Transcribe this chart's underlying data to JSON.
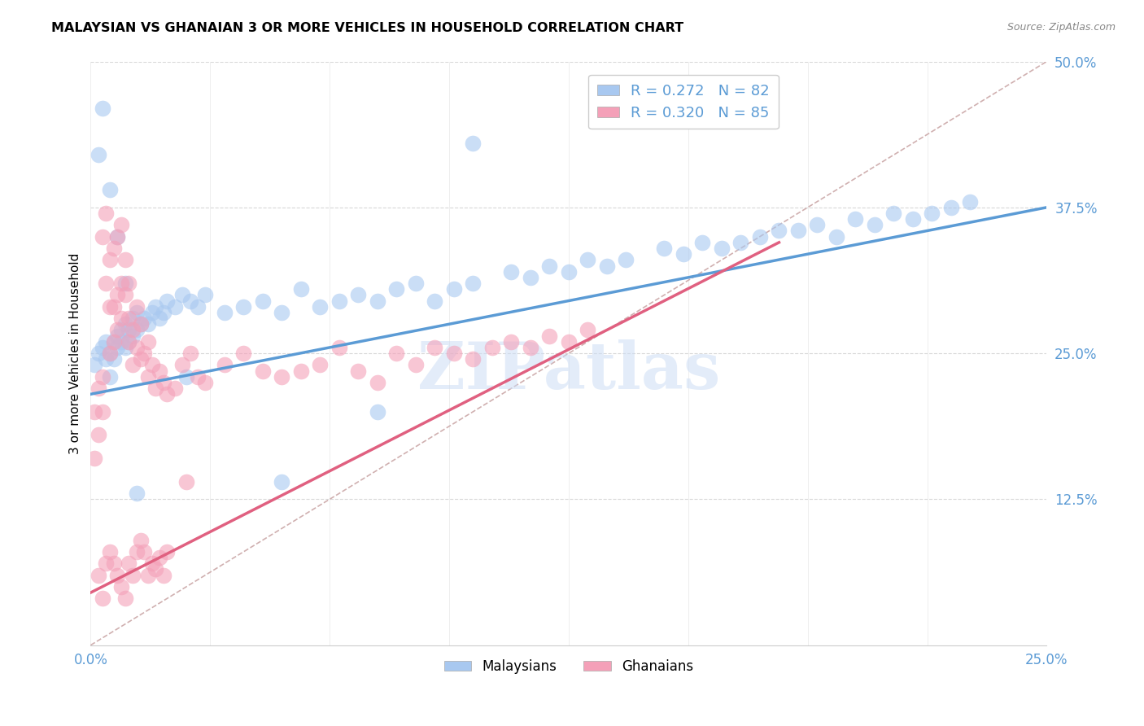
{
  "title": "MALAYSIAN VS GHANAIAN 3 OR MORE VEHICLES IN HOUSEHOLD CORRELATION CHART",
  "source": "Source: ZipAtlas.com",
  "ylabel": "3 or more Vehicles in Household",
  "x_min": 0.0,
  "x_max": 0.25,
  "y_min": 0.0,
  "y_max": 0.5,
  "y_ticks": [
    0.125,
    0.25,
    0.375,
    0.5
  ],
  "y_tick_labels": [
    "12.5%",
    "25.0%",
    "37.5%",
    "50.0%"
  ],
  "x_tick_vals": [
    0.0,
    0.03125,
    0.0625,
    0.09375,
    0.125,
    0.15625,
    0.1875,
    0.21875,
    0.25
  ],
  "malaysian_fill": "#a8c8f0",
  "ghanaian_fill": "#f4a0b8",
  "malaysian_line_color": "#5b9bd5",
  "ghanaian_line_color": "#e06080",
  "diag_line_color": "#d0b0b0",
  "legend_label_1": "R = 0.272   N = 82",
  "legend_label_2": "R = 0.320   N = 85",
  "watermark": "ZIPatlas",
  "watermark_color": "#ccddf5",
  "blue_trend_x0": 0.0,
  "blue_trend_y0": 0.215,
  "blue_trend_x1": 0.25,
  "blue_trend_y1": 0.375,
  "pink_trend_x0": 0.0,
  "pink_trend_y0": 0.045,
  "pink_trend_x1": 0.18,
  "pink_trend_y1": 0.345,
  "malaysians_x": [
    0.001,
    0.002,
    0.003,
    0.004,
    0.004,
    0.005,
    0.005,
    0.006,
    0.006,
    0.007,
    0.007,
    0.008,
    0.008,
    0.009,
    0.009,
    0.01,
    0.01,
    0.011,
    0.011,
    0.012,
    0.012,
    0.013,
    0.014,
    0.015,
    0.016,
    0.017,
    0.018,
    0.019,
    0.02,
    0.022,
    0.024,
    0.026,
    0.028,
    0.03,
    0.035,
    0.04,
    0.045,
    0.05,
    0.055,
    0.06,
    0.065,
    0.07,
    0.075,
    0.08,
    0.085,
    0.09,
    0.095,
    0.1,
    0.11,
    0.115,
    0.12,
    0.125,
    0.13,
    0.135,
    0.14,
    0.15,
    0.155,
    0.16,
    0.165,
    0.17,
    0.175,
    0.18,
    0.185,
    0.19,
    0.195,
    0.2,
    0.205,
    0.21,
    0.215,
    0.22,
    0.225,
    0.23,
    0.002,
    0.003,
    0.005,
    0.007,
    0.009,
    0.012,
    0.025,
    0.05,
    0.075,
    0.1
  ],
  "malaysians_y": [
    0.24,
    0.25,
    0.255,
    0.245,
    0.26,
    0.25,
    0.23,
    0.26,
    0.245,
    0.265,
    0.255,
    0.27,
    0.26,
    0.275,
    0.255,
    0.27,
    0.26,
    0.28,
    0.265,
    0.285,
    0.27,
    0.275,
    0.28,
    0.275,
    0.285,
    0.29,
    0.28,
    0.285,
    0.295,
    0.29,
    0.3,
    0.295,
    0.29,
    0.3,
    0.285,
    0.29,
    0.295,
    0.285,
    0.305,
    0.29,
    0.295,
    0.3,
    0.295,
    0.305,
    0.31,
    0.295,
    0.305,
    0.31,
    0.32,
    0.315,
    0.325,
    0.32,
    0.33,
    0.325,
    0.33,
    0.34,
    0.335,
    0.345,
    0.34,
    0.345,
    0.35,
    0.355,
    0.355,
    0.36,
    0.35,
    0.365,
    0.36,
    0.37,
    0.365,
    0.37,
    0.375,
    0.38,
    0.42,
    0.46,
    0.39,
    0.35,
    0.31,
    0.13,
    0.23,
    0.14,
    0.2,
    0.43
  ],
  "ghanaians_x": [
    0.001,
    0.001,
    0.002,
    0.002,
    0.003,
    0.003,
    0.003,
    0.004,
    0.004,
    0.005,
    0.005,
    0.005,
    0.006,
    0.006,
    0.006,
    0.007,
    0.007,
    0.007,
    0.008,
    0.008,
    0.008,
    0.009,
    0.009,
    0.01,
    0.01,
    0.01,
    0.011,
    0.011,
    0.012,
    0.012,
    0.013,
    0.013,
    0.014,
    0.015,
    0.015,
    0.016,
    0.017,
    0.018,
    0.019,
    0.02,
    0.022,
    0.024,
    0.026,
    0.028,
    0.03,
    0.035,
    0.04,
    0.045,
    0.05,
    0.055,
    0.06,
    0.065,
    0.07,
    0.075,
    0.08,
    0.085,
    0.09,
    0.095,
    0.1,
    0.105,
    0.11,
    0.115,
    0.12,
    0.125,
    0.13,
    0.002,
    0.003,
    0.004,
    0.005,
    0.006,
    0.007,
    0.008,
    0.009,
    0.01,
    0.011,
    0.012,
    0.013,
    0.014,
    0.015,
    0.016,
    0.017,
    0.018,
    0.019,
    0.02,
    0.025
  ],
  "ghanaians_y": [
    0.2,
    0.16,
    0.18,
    0.22,
    0.2,
    0.23,
    0.35,
    0.31,
    0.37,
    0.25,
    0.29,
    0.33,
    0.26,
    0.29,
    0.34,
    0.27,
    0.3,
    0.35,
    0.28,
    0.31,
    0.36,
    0.3,
    0.33,
    0.26,
    0.28,
    0.31,
    0.24,
    0.27,
    0.255,
    0.29,
    0.245,
    0.275,
    0.25,
    0.23,
    0.26,
    0.24,
    0.22,
    0.235,
    0.225,
    0.215,
    0.22,
    0.24,
    0.25,
    0.23,
    0.225,
    0.24,
    0.25,
    0.235,
    0.23,
    0.235,
    0.24,
    0.255,
    0.235,
    0.225,
    0.25,
    0.24,
    0.255,
    0.25,
    0.245,
    0.255,
    0.26,
    0.255,
    0.265,
    0.26,
    0.27,
    0.06,
    0.04,
    0.07,
    0.08,
    0.07,
    0.06,
    0.05,
    0.04,
    0.07,
    0.06,
    0.08,
    0.09,
    0.08,
    0.06,
    0.07,
    0.065,
    0.075,
    0.06,
    0.08,
    0.14
  ]
}
